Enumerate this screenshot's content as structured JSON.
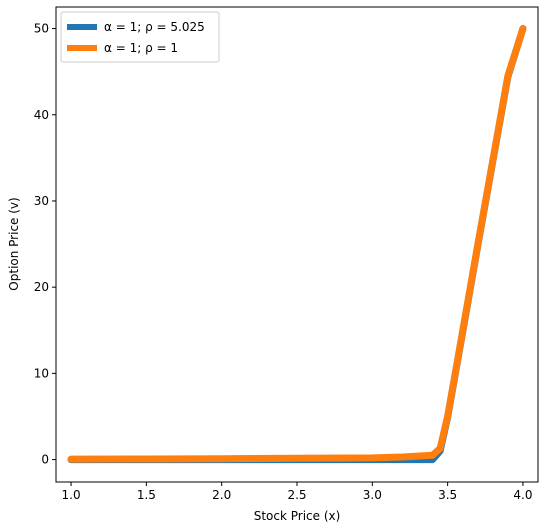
{
  "chart_data": {
    "type": "line",
    "xlabel": "Stock Price (x)",
    "ylabel": "Option Price (v)",
    "xlim": [
      0.9,
      4.1
    ],
    "ylim": [
      -2.6,
      52.5
    ],
    "xticks": [
      1.0,
      1.5,
      2.0,
      2.5,
      3.0,
      3.5,
      4.0
    ],
    "xtick_labels": [
      "1.0",
      "1.5",
      "2.0",
      "2.5",
      "3.0",
      "3.5",
      "4.0"
    ],
    "yticks": [
      0,
      10,
      20,
      30,
      40,
      50
    ],
    "ytick_labels": [
      "0",
      "10",
      "20",
      "30",
      "40",
      "50"
    ],
    "grid": false,
    "legend_position": "top-left",
    "series": [
      {
        "name": "α = 1; ρ = 5.025",
        "color": "#1f77b4",
        "x": [
          1.0,
          1.5,
          2.0,
          2.5,
          3.0,
          3.2,
          3.4,
          3.45,
          3.5,
          3.6,
          3.7,
          3.8,
          3.9,
          4.0
        ],
        "y": [
          0,
          0,
          0,
          0,
          0,
          0,
          0,
          1.0,
          4.9,
          14.8,
          24.8,
          34.6,
          44.4,
          50
        ]
      },
      {
        "name": "α = 1; ρ = 1",
        "color": "#ff7f0e",
        "x": [
          1.0,
          1.5,
          2.0,
          2.5,
          3.0,
          3.2,
          3.4,
          3.45,
          3.5,
          3.6,
          3.7,
          3.8,
          3.9,
          4.0
        ],
        "y": [
          0.05,
          0.07,
          0.1,
          0.15,
          0.2,
          0.3,
          0.5,
          1.3,
          5.0,
          14.9,
          24.9,
          34.7,
          44.5,
          50
        ]
      }
    ]
  }
}
